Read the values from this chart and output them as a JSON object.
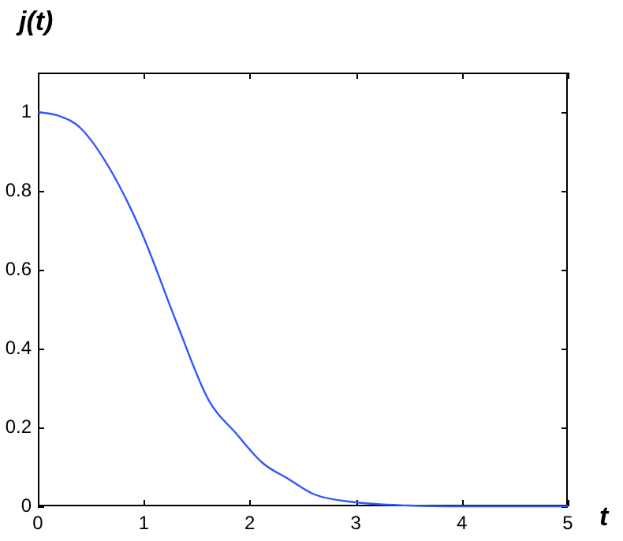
{
  "chart_data": {
    "type": "line",
    "xlabel": "t",
    "ylabel": "j(t)",
    "x": [
      0,
      0.2,
      0.4,
      0.67,
      0.97,
      1.31,
      1.61,
      1.87,
      2.12,
      2.36,
      2.61,
      3,
      3.5,
      4,
      5
    ],
    "series": [
      {
        "color": "#3355ff",
        "values": [
          1,
          0.99,
          0.96,
          0.86,
          0.7,
          0.465,
          0.27,
          0.185,
          0.11,
          0.07,
          0.03,
          0.01,
          0.002,
          0,
          0
        ]
      }
    ],
    "xlim": [
      0,
      5
    ],
    "xticks": [
      0,
      1,
      2,
      3,
      4,
      5
    ],
    "ylim": [
      0,
      1.1
    ],
    "yticks": [
      0,
      0.2,
      0.4,
      0.6,
      0.8,
      1
    ],
    "grid": false,
    "legend": false,
    "marker": "none",
    "line_style": "solid"
  }
}
